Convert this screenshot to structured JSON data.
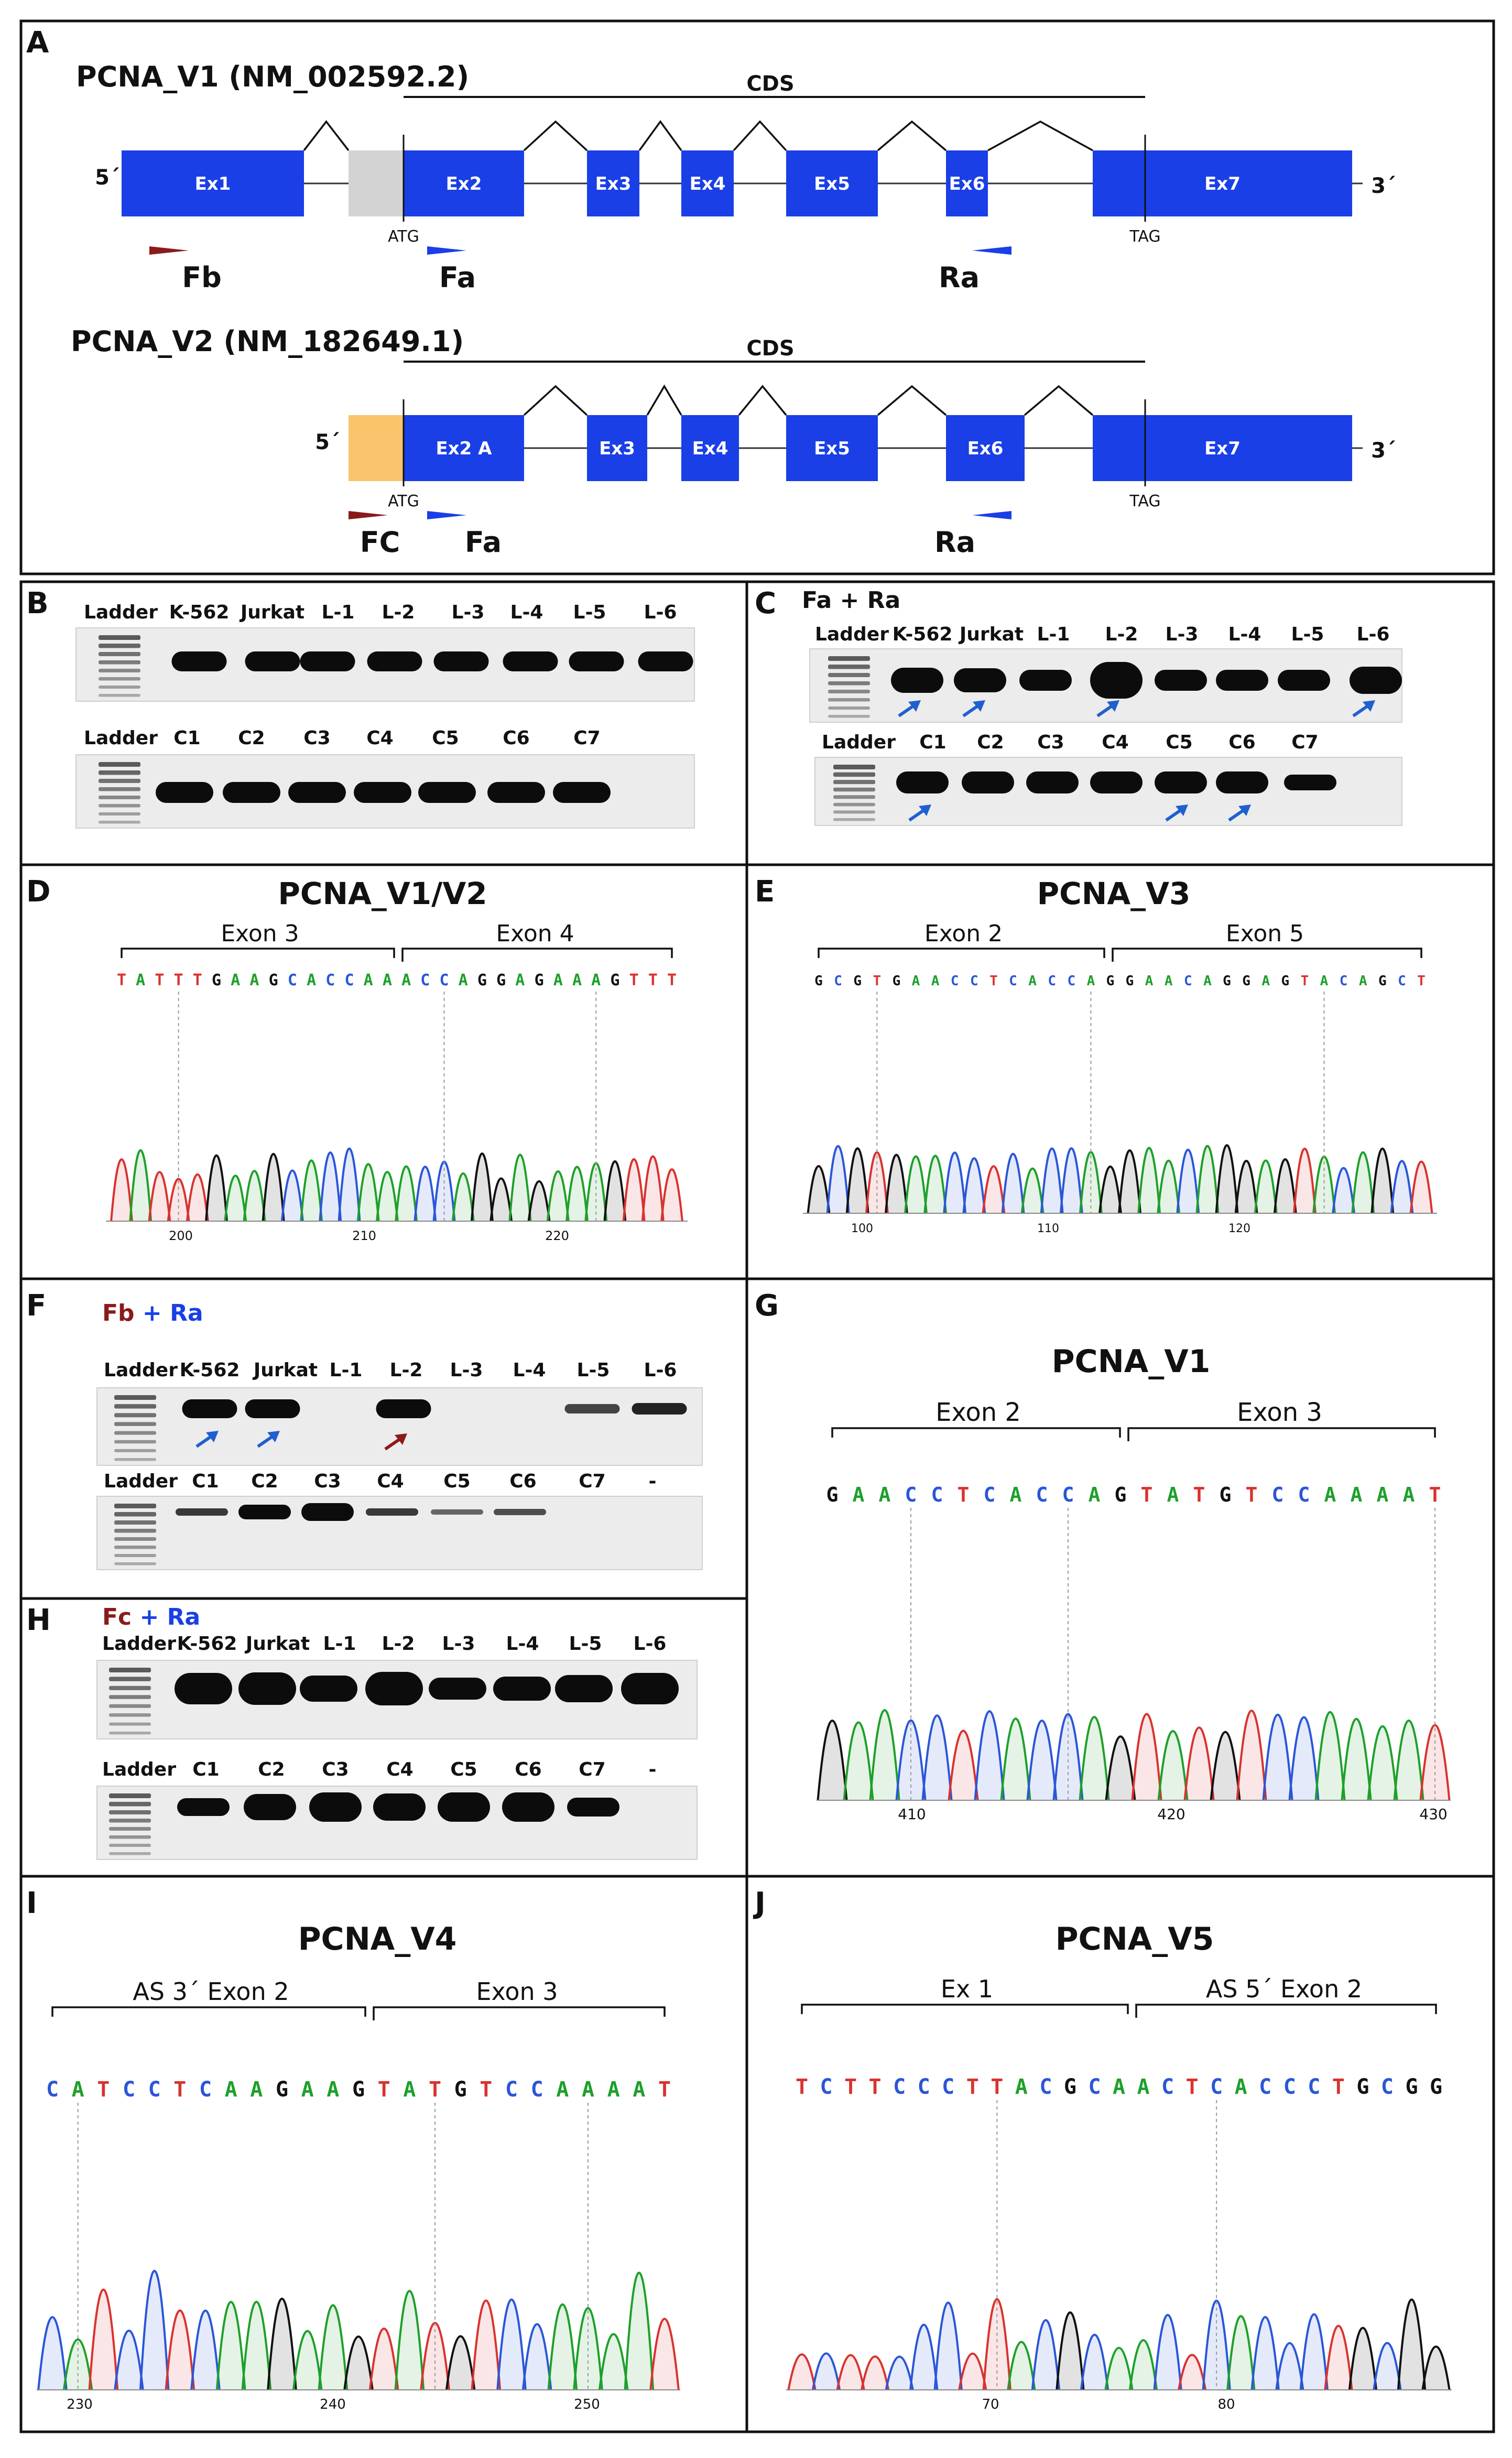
{
  "colors": {
    "exon": "#1a3fe6",
    "utr_grey": "#d3d3d3",
    "utr_orange": "#f9c46b",
    "primer_red": "#8b1a1a",
    "primer_blue": "#1a3fe6",
    "arrow_blue": "#1f5fd0",
    "arrow_red": "#8b1a1a",
    "base_A": "#1ea02a",
    "base_C": "#2a56d8",
    "base_G": "#111111",
    "base_T": "#d8332f"
  },
  "panel_labels": [
    "A",
    "B",
    "C",
    "D",
    "E",
    "F",
    "G",
    "H",
    "I",
    "J"
  ],
  "panelA": {
    "v1": {
      "title": "PCNA_V1 (NM_002592.2)",
      "cds": "CDS",
      "five": "5´",
      "three": "3´",
      "exons": [
        "Ex1",
        "Ex2",
        "Ex3",
        "Ex4",
        "Ex5",
        "Ex6",
        "Ex7"
      ],
      "atg": "ATG",
      "tag": "TAG",
      "primers": [
        "Fb",
        "Fa",
        "Ra"
      ]
    },
    "v2": {
      "title": "PCNA_V2 (NM_182649.1)",
      "cds": "CDS",
      "five": "5´",
      "three": "3´",
      "exons": [
        "Ex2 A",
        "Ex3",
        "Ex4",
        "Ex5",
        "Ex6",
        "Ex7"
      ],
      "atg": "ATG",
      "tag": "TAG",
      "primers": [
        "FC",
        "Fa",
        "Ra"
      ]
    }
  },
  "gels": {
    "B": {
      "top_lanes": [
        "Ladder",
        "K-562",
        "Jurkat",
        "L-1",
        "L-2",
        "L-3",
        "L-4",
        "L-5",
        "L-6"
      ],
      "bottom_lanes": [
        "Ladder",
        "C1",
        "C2",
        "C3",
        "C4",
        "C5",
        "C6",
        "C7"
      ]
    },
    "C": {
      "title": "Fa + Ra",
      "top_lanes": [
        "Ladder",
        "K-562",
        "Jurkat",
        "L-1",
        "L-2",
        "L-3",
        "L-4",
        "L-5",
        "L-6"
      ],
      "bottom_lanes": [
        "Ladder",
        "C1",
        "C2",
        "C3",
        "C4",
        "C5",
        "C6",
        "C7"
      ]
    },
    "F": {
      "title_a": "Fb",
      "title_plus": " + ",
      "title_b": "Ra",
      "top_lanes": [
        "Ladder",
        "K-562",
        "Jurkat",
        "L-1",
        "L-2",
        "L-3",
        "L-4",
        "L-5",
        "L-6"
      ],
      "bottom_lanes": [
        "Ladder",
        "C1",
        "C2",
        "C3",
        "C4",
        "C5",
        "C6",
        "C7",
        "-"
      ]
    },
    "H": {
      "title_a": "Fc",
      "title_plus": " + ",
      "title_b": "Ra",
      "top_lanes": [
        "Ladder",
        "K-562",
        "Jurkat",
        "L-1",
        "L-2",
        "L-3",
        "L-4",
        "L-5",
        "L-6"
      ],
      "bottom_lanes": [
        "Ladder",
        "C1",
        "C2",
        "C3",
        "C4",
        "C5",
        "C6",
        "C7",
        "-"
      ]
    }
  },
  "chromatograms": {
    "D": {
      "title": "PCNA_V1/V2",
      "left_exon": "Exon 3",
      "right_exon": "Exon 4",
      "sequence": "TATTTGAAGCACCAAACCAGGAGAAAGTTT",
      "ticks": [
        "200",
        "210",
        "220"
      ]
    },
    "E": {
      "title": "PCNA_V3",
      "left_exon": "Exon 2",
      "right_exon": "Exon 5",
      "sequence": "GCGTGAACCTCACCAGGAACAGGAGTACAGCT",
      "ticks": [
        "100",
        "110",
        "120"
      ]
    },
    "G": {
      "title": "PCNA_V1",
      "left_exon": "Exon 2",
      "right_exon": "Exon 3",
      "sequence": "GAACCTCACCAGTATGTCCAAAAT",
      "ticks": [
        "410",
        "420",
        "430"
      ]
    },
    "I": {
      "title": "PCNA_V4",
      "left_exon": "AS 3´ Exon 2",
      "right_exon": "Exon 3",
      "sequence": "CATCCTCAAGAAGTATGTCCAAAAT",
      "ticks": [
        "230",
        "240",
        "250"
      ]
    },
    "J": {
      "title": "PCNA_V5",
      "left_exon": "Ex 1",
      "right_exon": "AS  5´ Exon 2",
      "sequence": "TCTTCCCTTACGCAACTCACCCTGCGG",
      "ticks": [
        "70",
        "80"
      ]
    }
  }
}
